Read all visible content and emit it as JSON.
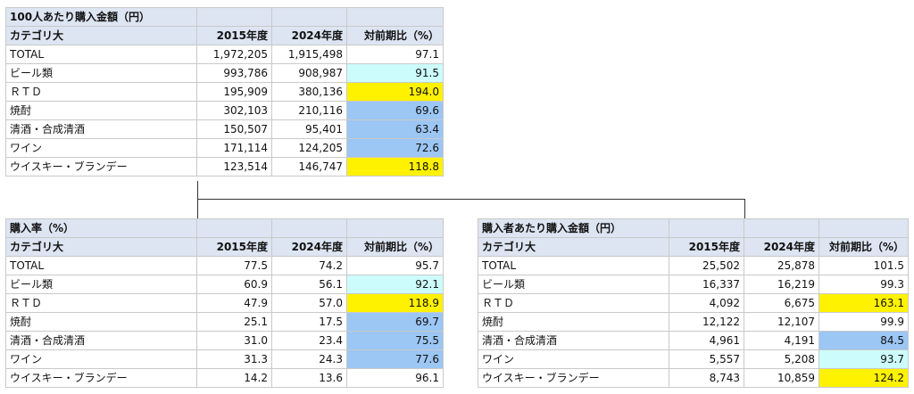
{
  "tables": [
    {
      "title": "100人あたり購入金額（円）",
      "headers": [
        "カテゴリ大",
        "2015年度",
        "2024年度",
        "対前期比（%）"
      ],
      "rows": [
        {
          "label": "TOTAL",
          "v2015": "1,972,205",
          "v2024": "1,915,498",
          "ratio": "97.1",
          "hl": ""
        },
        {
          "label": "ビール類",
          "v2015": "993,786",
          "v2024": "908,987",
          "ratio": "91.5",
          "hl": "cyan"
        },
        {
          "label": "ＲＴＤ",
          "v2015": "195,909",
          "v2024": "380,136",
          "ratio": "194.0",
          "hl": "yellow"
        },
        {
          "label": "焼酎",
          "v2015": "302,103",
          "v2024": "210,116",
          "ratio": "69.6",
          "hl": "blue"
        },
        {
          "label": "清酒・合成清酒",
          "v2015": "150,507",
          "v2024": "95,401",
          "ratio": "63.4",
          "hl": "blue"
        },
        {
          "label": "ワイン",
          "v2015": "171,114",
          "v2024": "124,205",
          "ratio": "72.6",
          "hl": "blue"
        },
        {
          "label": "ウイスキー・ブランデー",
          "v2015": "123,514",
          "v2024": "146,747",
          "ratio": "118.8",
          "hl": "yellow"
        }
      ]
    },
    {
      "title": "購入率（%）",
      "headers": [
        "カテゴリ大",
        "2015年度",
        "2024年度",
        "対前期比（%）"
      ],
      "rows": [
        {
          "label": "TOTAL",
          "v2015": "77.5",
          "v2024": "74.2",
          "ratio": "95.7",
          "hl": ""
        },
        {
          "label": "ビール類",
          "v2015": "60.9",
          "v2024": "56.1",
          "ratio": "92.1",
          "hl": "cyan"
        },
        {
          "label": "ＲＴＤ",
          "v2015": "47.9",
          "v2024": "57.0",
          "ratio": "118.9",
          "hl": "yellow"
        },
        {
          "label": "焼酎",
          "v2015": "25.1",
          "v2024": "17.5",
          "ratio": "69.7",
          "hl": "blue"
        },
        {
          "label": "清酒・合成清酒",
          "v2015": "31.0",
          "v2024": "23.4",
          "ratio": "75.5",
          "hl": "blue"
        },
        {
          "label": "ワイン",
          "v2015": "31.3",
          "v2024": "24.3",
          "ratio": "77.6",
          "hl": "blue"
        },
        {
          "label": "ウイスキー・ブランデー",
          "v2015": "14.2",
          "v2024": "13.6",
          "ratio": "96.1",
          "hl": ""
        }
      ]
    },
    {
      "title": "購入者あたり購入金額（円）",
      "headers": [
        "カテゴリ大",
        "2015年度",
        "2024年度",
        "対前期比（%）"
      ],
      "rows": [
        {
          "label": "TOTAL",
          "v2015": "25,502",
          "v2024": "25,878",
          "ratio": "101.5",
          "hl": ""
        },
        {
          "label": "ビール類",
          "v2015": "16,337",
          "v2024": "16,219",
          "ratio": "99.3",
          "hl": ""
        },
        {
          "label": "ＲＴＤ",
          "v2015": "4,092",
          "v2024": "6,675",
          "ratio": "163.1",
          "hl": "yellow"
        },
        {
          "label": "焼酎",
          "v2015": "12,122",
          "v2024": "12,107",
          "ratio": "99.9",
          "hl": ""
        },
        {
          "label": "清酒・合成清酒",
          "v2015": "4,961",
          "v2024": "4,191",
          "ratio": "84.5",
          "hl": "blue"
        },
        {
          "label": "ワイン",
          "v2015": "5,557",
          "v2024": "5,208",
          "ratio": "93.7",
          "hl": "cyan"
        },
        {
          "label": "ウイスキー・ブランデー",
          "v2015": "8,743",
          "v2024": "10,859",
          "ratio": "124.2",
          "hl": "yellow"
        }
      ]
    }
  ],
  "colors": {
    "header_bg": "#dde5f2",
    "highlight_yellow": "#fff200",
    "highlight_blue": "#9cc6f4",
    "highlight_cyan": "#ccfcfc",
    "border": "#c9c9c9",
    "connector": "#333333"
  }
}
